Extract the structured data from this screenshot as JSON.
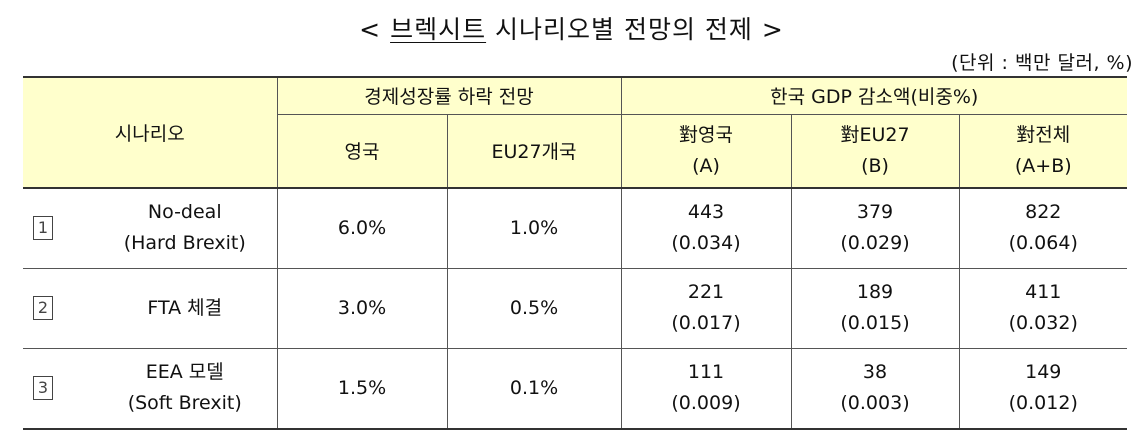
{
  "title": {
    "pre": "< ",
    "underlined": "브렉시트",
    "rest": " 시나리오별 전망의 전제 >"
  },
  "unit": "(단위 : 백만 달러, %)",
  "table": {
    "header": {
      "scenario": "시나리오",
      "growth_group": "경제성장률 하락 전망",
      "gdp_group": "한국 GDP 감소액(비중%)",
      "uk": "영국",
      "eu27": "EU27개국",
      "vs_uk": [
        "對영국",
        "(A)"
      ],
      "vs_eu27": [
        "對EU27",
        "(B)"
      ],
      "vs_total": [
        "對전체",
        "(A+B)"
      ]
    },
    "rows": [
      {
        "num": "1",
        "scenario": [
          "No-deal",
          "(Hard Brexit)"
        ],
        "uk": "6.0%",
        "eu27": "1.0%",
        "a": [
          "443",
          "(0.034)"
        ],
        "b": [
          "379",
          "(0.029)"
        ],
        "ab": [
          "822",
          "(0.064)"
        ]
      },
      {
        "num": "2",
        "scenario": [
          "FTA 체결"
        ],
        "uk": "3.0%",
        "eu27": "0.5%",
        "a": [
          "221",
          "(0.017)"
        ],
        "b": [
          "189",
          "(0.015)"
        ],
        "ab": [
          "411",
          "(0.032)"
        ]
      },
      {
        "num": "3",
        "scenario": [
          "EEA 모델",
          "(Soft Brexit)"
        ],
        "uk": "1.5%",
        "eu27": "0.1%",
        "a": [
          "111",
          "(0.009)"
        ],
        "b": [
          "38",
          "(0.003)"
        ],
        "ab": [
          "149",
          "(0.012)"
        ]
      }
    ]
  }
}
